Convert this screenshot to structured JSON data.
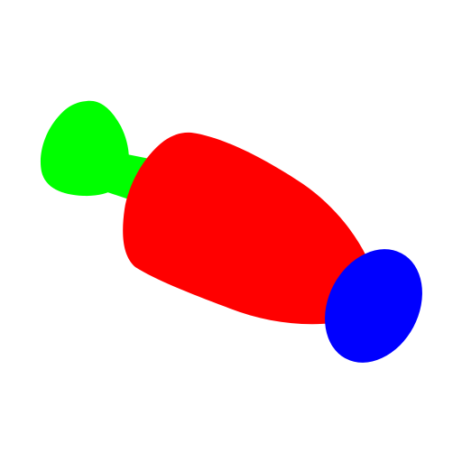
{
  "colors": {
    "background": "#ffffff",
    "handle": "#00ff00",
    "body": "#ff0000",
    "cap": "#0000ff"
  },
  "parts": [
    {
      "name": "handle-shape",
      "color_key": "handle"
    },
    {
      "name": "body-shape",
      "color_key": "body"
    },
    {
      "name": "cap-shape",
      "color_key": "cap"
    }
  ]
}
